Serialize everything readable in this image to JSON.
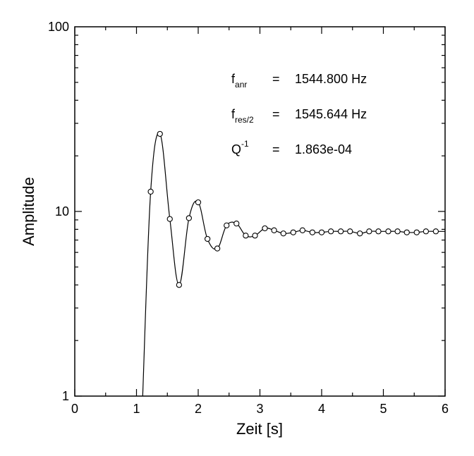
{
  "chart_data": {
    "type": "line",
    "xlabel": "Zeit [s]",
    "ylabel": "Amplitude",
    "xlim": [
      0,
      6
    ],
    "ylim": [
      1,
      100
    ],
    "yscale": "log",
    "grid": false,
    "xticks": [
      "0",
      "1",
      "2",
      "3",
      "4",
      "5",
      "6"
    ],
    "yticks": [
      "1",
      "10",
      "100"
    ],
    "series": [
      {
        "style": "line-with-circle-markers",
        "x": [
          1.23,
          1.38,
          1.54,
          1.69,
          1.85,
          2.0,
          2.15,
          2.31,
          2.46,
          2.62,
          2.77,
          2.92,
          3.08,
          3.23,
          3.38,
          3.54,
          3.69,
          3.85,
          4.0,
          4.15,
          4.31,
          4.46,
          4.62,
          4.77,
          4.92,
          5.08,
          5.23,
          5.38,
          5.54,
          5.69,
          5.85
        ],
        "y": [
          12.8,
          26.3,
          9.1,
          4.0,
          9.2,
          11.2,
          7.1,
          6.3,
          8.4,
          8.6,
          7.4,
          7.4,
          8.1,
          7.9,
          7.6,
          7.7,
          7.9,
          7.7,
          7.7,
          7.8,
          7.8,
          7.8,
          7.6,
          7.8,
          7.8,
          7.8,
          7.8,
          7.7,
          7.7,
          7.8,
          7.8
        ]
      }
    ],
    "annotations": [
      {
        "symbol": "f",
        "sub": "anr",
        "eq": "=",
        "value": "1544.800 Hz"
      },
      {
        "symbol": "f",
        "sub": "res/2",
        "eq": "=",
        "value": "1545.644 Hz"
      },
      {
        "symbol": "Q",
        "sup": "-1",
        "eq": "=",
        "value": "1.863e-04"
      }
    ]
  }
}
